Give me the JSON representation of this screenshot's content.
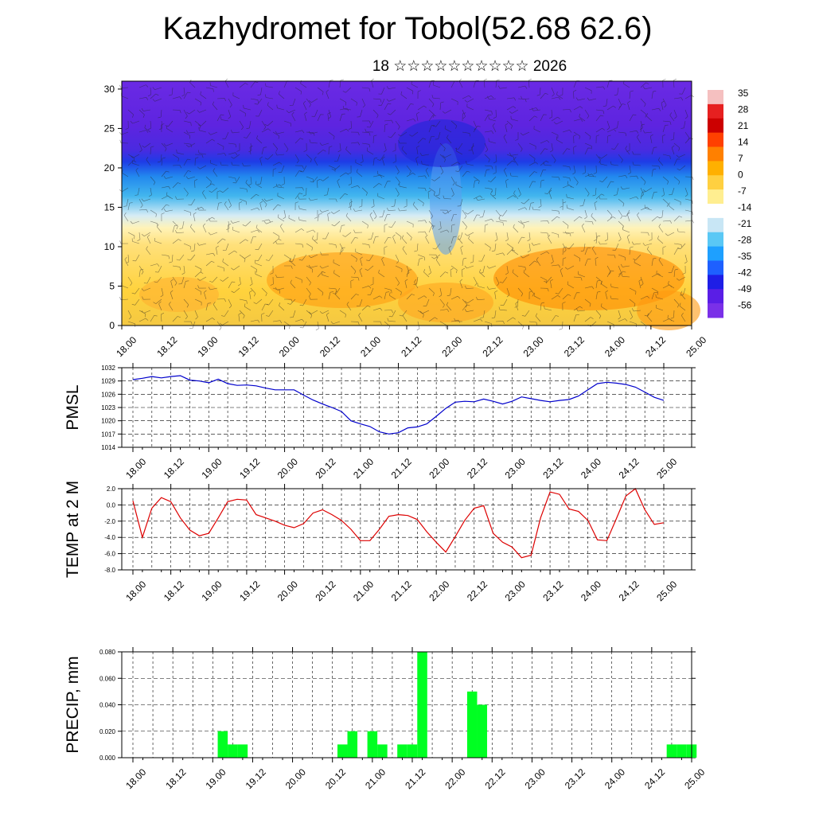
{
  "header": {
    "title": "Kazhydromet for Tobol(52.68 62.6)",
    "subtitle": "18 ☆☆☆☆☆☆☆☆☆☆ 2026"
  },
  "chart_data": [
    {
      "type": "heatmap",
      "title": "",
      "ylabel": "",
      "xlabel": "",
      "x_ticks": [
        "18.00",
        "18.12",
        "19.00",
        "19.12",
        "20.00",
        "20.12",
        "21.00",
        "21.12",
        "22.00",
        "22.12",
        "23.00",
        "23.12",
        "24.00",
        "24.12",
        "25.00"
      ],
      "y_ticks": [
        0,
        5,
        10,
        15,
        20,
        25,
        30
      ],
      "ylim": [
        0,
        31
      ],
      "colorbar": {
        "labels": [
          "35",
          "28",
          "21",
          "14",
          "7",
          "0",
          "-7",
          "-14",
          "-21",
          "-28",
          "-35",
          "-42",
          "-49",
          "-56"
        ]
      },
      "overlay": "wind barbs",
      "colors": {
        "cold": "#5a1ee6",
        "mid": "#1ea0ff",
        "warm": "#ffd040",
        "hot": "#ff7a00"
      }
    },
    {
      "type": "line",
      "ylabel": "PMSL",
      "x_ticks": [
        "18.00",
        "18.12",
        "19.00",
        "19.12",
        "20.00",
        "20.12",
        "21.00",
        "21.12",
        "22.00",
        "22.12",
        "23.00",
        "23.12",
        "24.00",
        "24.12",
        "25.00"
      ],
      "y_ticks": [
        "1032",
        "1029",
        "1026",
        "1023",
        "1020",
        "1017",
        "1014"
      ],
      "ylim": [
        1014,
        1032
      ],
      "color": "#0000cc",
      "series": [
        {
          "x": [
            0,
            3,
            6,
            9,
            12,
            15,
            18,
            21,
            24,
            27,
            30,
            33,
            36,
            39,
            42,
            45,
            48,
            51,
            54,
            57,
            60,
            63,
            66,
            69,
            72,
            75,
            78,
            81,
            84,
            87,
            90,
            93,
            96,
            99,
            102,
            105,
            108,
            111,
            114,
            117,
            120,
            123,
            126,
            129,
            132,
            135,
            138,
            141,
            144,
            147,
            150,
            153,
            156,
            159,
            162,
            165,
            168
          ],
          "values": [
            1029.3,
            1029.6,
            1030.0,
            1029.7,
            1030.0,
            1030.2,
            1029.2,
            1029.0,
            1028.6,
            1029.4,
            1028.4,
            1028.0,
            1028.1,
            1027.9,
            1027.4,
            1027.0,
            1027.0,
            1027.0,
            1025.8,
            1024.7,
            1023.8,
            1023.0,
            1022.1,
            1020.0,
            1019.3,
            1018.7,
            1017.5,
            1017.0,
            1017.3,
            1018.4,
            1018.6,
            1019.3,
            1021.0,
            1022.8,
            1024.2,
            1024.4,
            1024.3,
            1024.9,
            1024.4,
            1023.8,
            1024.4,
            1025.4,
            1025.0,
            1024.6,
            1024.3,
            1024.6,
            1024.8,
            1025.6,
            1027.0,
            1028.4,
            1028.7,
            1028.5,
            1028.2,
            1027.6,
            1026.5,
            1025.3,
            1024.6
          ]
        }
      ]
    },
    {
      "type": "line",
      "ylabel": "TEMP at 2 M",
      "x_ticks": [
        "18.00",
        "18.12",
        "19.00",
        "19.12",
        "20.00",
        "20.12",
        "21.00",
        "21.12",
        "22.00",
        "22.12",
        "23.00",
        "23.12",
        "24.00",
        "24.12",
        "25.00"
      ],
      "y_ticks": [
        "2.0",
        "0.0",
        "-2.0",
        "-4.0",
        "-6.0",
        "-8.0"
      ],
      "ylim": [
        -8,
        2
      ],
      "color": "#dd0000",
      "series": [
        {
          "x": [
            0,
            3,
            6,
            9,
            12,
            15,
            18,
            21,
            24,
            27,
            30,
            33,
            36,
            39,
            42,
            45,
            48,
            51,
            54,
            57,
            60,
            63,
            66,
            69,
            72,
            75,
            78,
            81,
            84,
            87,
            90,
            93,
            96,
            99,
            102,
            105,
            108,
            111,
            114,
            117,
            120,
            123,
            126,
            129,
            132,
            135,
            138,
            141,
            144,
            147,
            150,
            153,
            156,
            159,
            162,
            165,
            168
          ],
          "values": [
            0.5,
            -4.0,
            -0.4,
            0.9,
            0.4,
            -1.6,
            -3.1,
            -3.8,
            -3.5,
            -1.6,
            0.4,
            0.7,
            0.6,
            -1.2,
            -1.6,
            -2.0,
            -2.5,
            -2.8,
            -2.3,
            -1.0,
            -0.6,
            -1.2,
            -1.9,
            -3.0,
            -4.4,
            -4.4,
            -3.0,
            -1.4,
            -1.2,
            -1.3,
            -1.8,
            -3.3,
            -4.6,
            -5.8,
            -3.9,
            -1.9,
            -0.4,
            -0.1,
            -3.5,
            -4.6,
            -5.2,
            -6.5,
            -6.2,
            -1.6,
            1.6,
            1.3,
            -0.5,
            -0.8,
            -1.9,
            -4.3,
            -4.4,
            -1.7,
            1.1,
            2.0,
            -0.6,
            -2.4,
            -2.2
          ]
        }
      ]
    },
    {
      "type": "bar",
      "ylabel": "PRECIP, mm",
      "x_ticks": [
        "18.00",
        "18.12",
        "19.00",
        "19.12",
        "20.00",
        "20.12",
        "21.00",
        "21.12",
        "22.00",
        "22.12",
        "23.00",
        "23.12",
        "24.00",
        "24.12",
        "25.00"
      ],
      "y_ticks": [
        "0.080",
        "0.060",
        "0.040",
        "0.020",
        "0.000"
      ],
      "ylim": [
        0,
        0.08
      ],
      "color": "#00ff22",
      "series": [
        {
          "x": [
            27,
            30,
            33,
            63,
            66,
            72,
            75,
            81,
            84,
            87,
            102,
            105,
            162,
            165,
            168
          ],
          "values": [
            0.02,
            0.01,
            0.01,
            0.01,
            0.02,
            0.02,
            0.01,
            0.01,
            0.01,
            0.08,
            0.05,
            0.04,
            0.01,
            0.01,
            0.01
          ]
        }
      ]
    }
  ]
}
